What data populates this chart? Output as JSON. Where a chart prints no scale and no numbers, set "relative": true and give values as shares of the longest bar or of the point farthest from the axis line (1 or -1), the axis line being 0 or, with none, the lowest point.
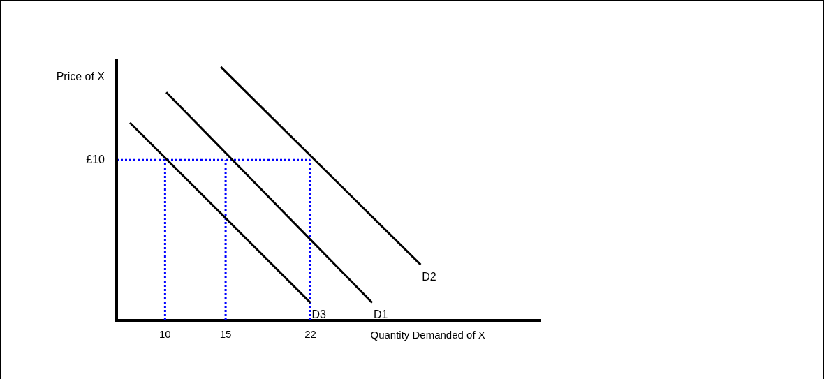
{
  "chart_data": {
    "type": "line",
    "xlabel": "Quantity Demanded of X",
    "ylabel": "Price of X",
    "relative": true,
    "xlim": [
      6,
      41
    ],
    "xticks": [
      10,
      15,
      22
    ],
    "tick_labels": "x",
    "grid": false,
    "legend": false,
    "marker": "none",
    "series": [
      {
        "name": "D3",
        "color": "#000000",
        "x": [
          7.1,
          22
        ],
        "values": [
          0.78,
          0.07
        ]
      },
      {
        "name": "D1",
        "color": "#000000",
        "x": [
          10.1,
          27.1
        ],
        "values": [
          0.9,
          0.07
        ]
      },
      {
        "name": "D2",
        "color": "#000000",
        "x": [
          14.6,
          31.1
        ],
        "values": [
          1,
          0.22
        ]
      },
      {
        "color": "#0000ff",
        "line_style": "dotted",
        "x": [
          6,
          22
        ],
        "values": [
          0.633,
          0.633
        ]
      },
      {
        "color": "#0000ff",
        "line_style": "dotted",
        "x": [
          10,
          10
        ],
        "values": [
          0,
          0.633
        ]
      },
      {
        "color": "#0000ff",
        "line_style": "dotted",
        "x": [
          15,
          15
        ],
        "values": [
          0,
          0.633
        ]
      },
      {
        "color": "#0000ff",
        "line_style": "dotted",
        "x": [
          22,
          22
        ],
        "values": [
          0,
          0.633
        ]
      }
    ],
    "ref_lines": [
      {
        "axis": "x",
        "value": 6,
        "color": "#000000"
      }
    ],
    "annotations": [
      "£10"
    ]
  }
}
